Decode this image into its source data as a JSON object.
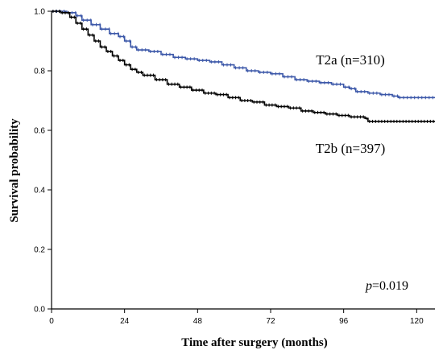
{
  "chart_data": {
    "type": "line",
    "title": "",
    "xlabel": "Time after surgery (months)",
    "ylabel": "Survival probability",
    "xlim": [
      0,
      126
    ],
    "ylim": [
      0.0,
      1.0
    ],
    "x_ticks": [
      0,
      24,
      48,
      72,
      96,
      120
    ],
    "y_ticks": [
      0.0,
      0.2,
      0.4,
      0.6,
      0.8,
      1.0
    ],
    "y_tick_labels": [
      "0.0",
      "0.2",
      "0.4",
      "0.6",
      "0.8",
      "1.0"
    ],
    "grid": false,
    "series": [
      {
        "name": "T2a (n=310)",
        "color": "#3a56a8",
        "style": "step-with-censor-marks",
        "points": [
          [
            0,
            1.0
          ],
          [
            5,
            0.995
          ],
          [
            8,
            0.985
          ],
          [
            10,
            0.97
          ],
          [
            13,
            0.955
          ],
          [
            16,
            0.94
          ],
          [
            19,
            0.925
          ],
          [
            22,
            0.915
          ],
          [
            24,
            0.9
          ],
          [
            26,
            0.88
          ],
          [
            28,
            0.87
          ],
          [
            32,
            0.865
          ],
          [
            36,
            0.855
          ],
          [
            40,
            0.845
          ],
          [
            44,
            0.84
          ],
          [
            48,
            0.835
          ],
          [
            52,
            0.83
          ],
          [
            56,
            0.82
          ],
          [
            60,
            0.81
          ],
          [
            64,
            0.8
          ],
          [
            68,
            0.795
          ],
          [
            72,
            0.79
          ],
          [
            76,
            0.78
          ],
          [
            80,
            0.77
          ],
          [
            84,
            0.765
          ],
          [
            88,
            0.76
          ],
          [
            92,
            0.755
          ],
          [
            96,
            0.745
          ],
          [
            98,
            0.74
          ],
          [
            100,
            0.73
          ],
          [
            104,
            0.725
          ],
          [
            108,
            0.72
          ],
          [
            112,
            0.715
          ],
          [
            114,
            0.71
          ],
          [
            126,
            0.71
          ]
        ]
      },
      {
        "name": "T2b (n=397)",
        "color": "#000000",
        "style": "step-with-censor-marks",
        "points": [
          [
            0,
            1.0
          ],
          [
            3,
            0.995
          ],
          [
            6,
            0.98
          ],
          [
            8,
            0.96
          ],
          [
            10,
            0.94
          ],
          [
            12,
            0.92
          ],
          [
            14,
            0.9
          ],
          [
            16,
            0.88
          ],
          [
            18,
            0.865
          ],
          [
            20,
            0.85
          ],
          [
            22,
            0.835
          ],
          [
            24,
            0.82
          ],
          [
            26,
            0.805
          ],
          [
            28,
            0.795
          ],
          [
            30,
            0.785
          ],
          [
            34,
            0.77
          ],
          [
            38,
            0.755
          ],
          [
            42,
            0.745
          ],
          [
            46,
            0.735
          ],
          [
            50,
            0.725
          ],
          [
            54,
            0.72
          ],
          [
            58,
            0.71
          ],
          [
            62,
            0.7
          ],
          [
            66,
            0.695
          ],
          [
            70,
            0.685
          ],
          [
            74,
            0.68
          ],
          [
            78,
            0.675
          ],
          [
            82,
            0.665
          ],
          [
            86,
            0.66
          ],
          [
            90,
            0.655
          ],
          [
            94,
            0.65
          ],
          [
            98,
            0.645
          ],
          [
            103,
            0.64
          ],
          [
            104,
            0.63
          ],
          [
            126,
            0.63
          ]
        ]
      }
    ],
    "annotations": [
      {
        "text_italic": "p",
        "text": "=0.019"
      }
    ]
  }
}
